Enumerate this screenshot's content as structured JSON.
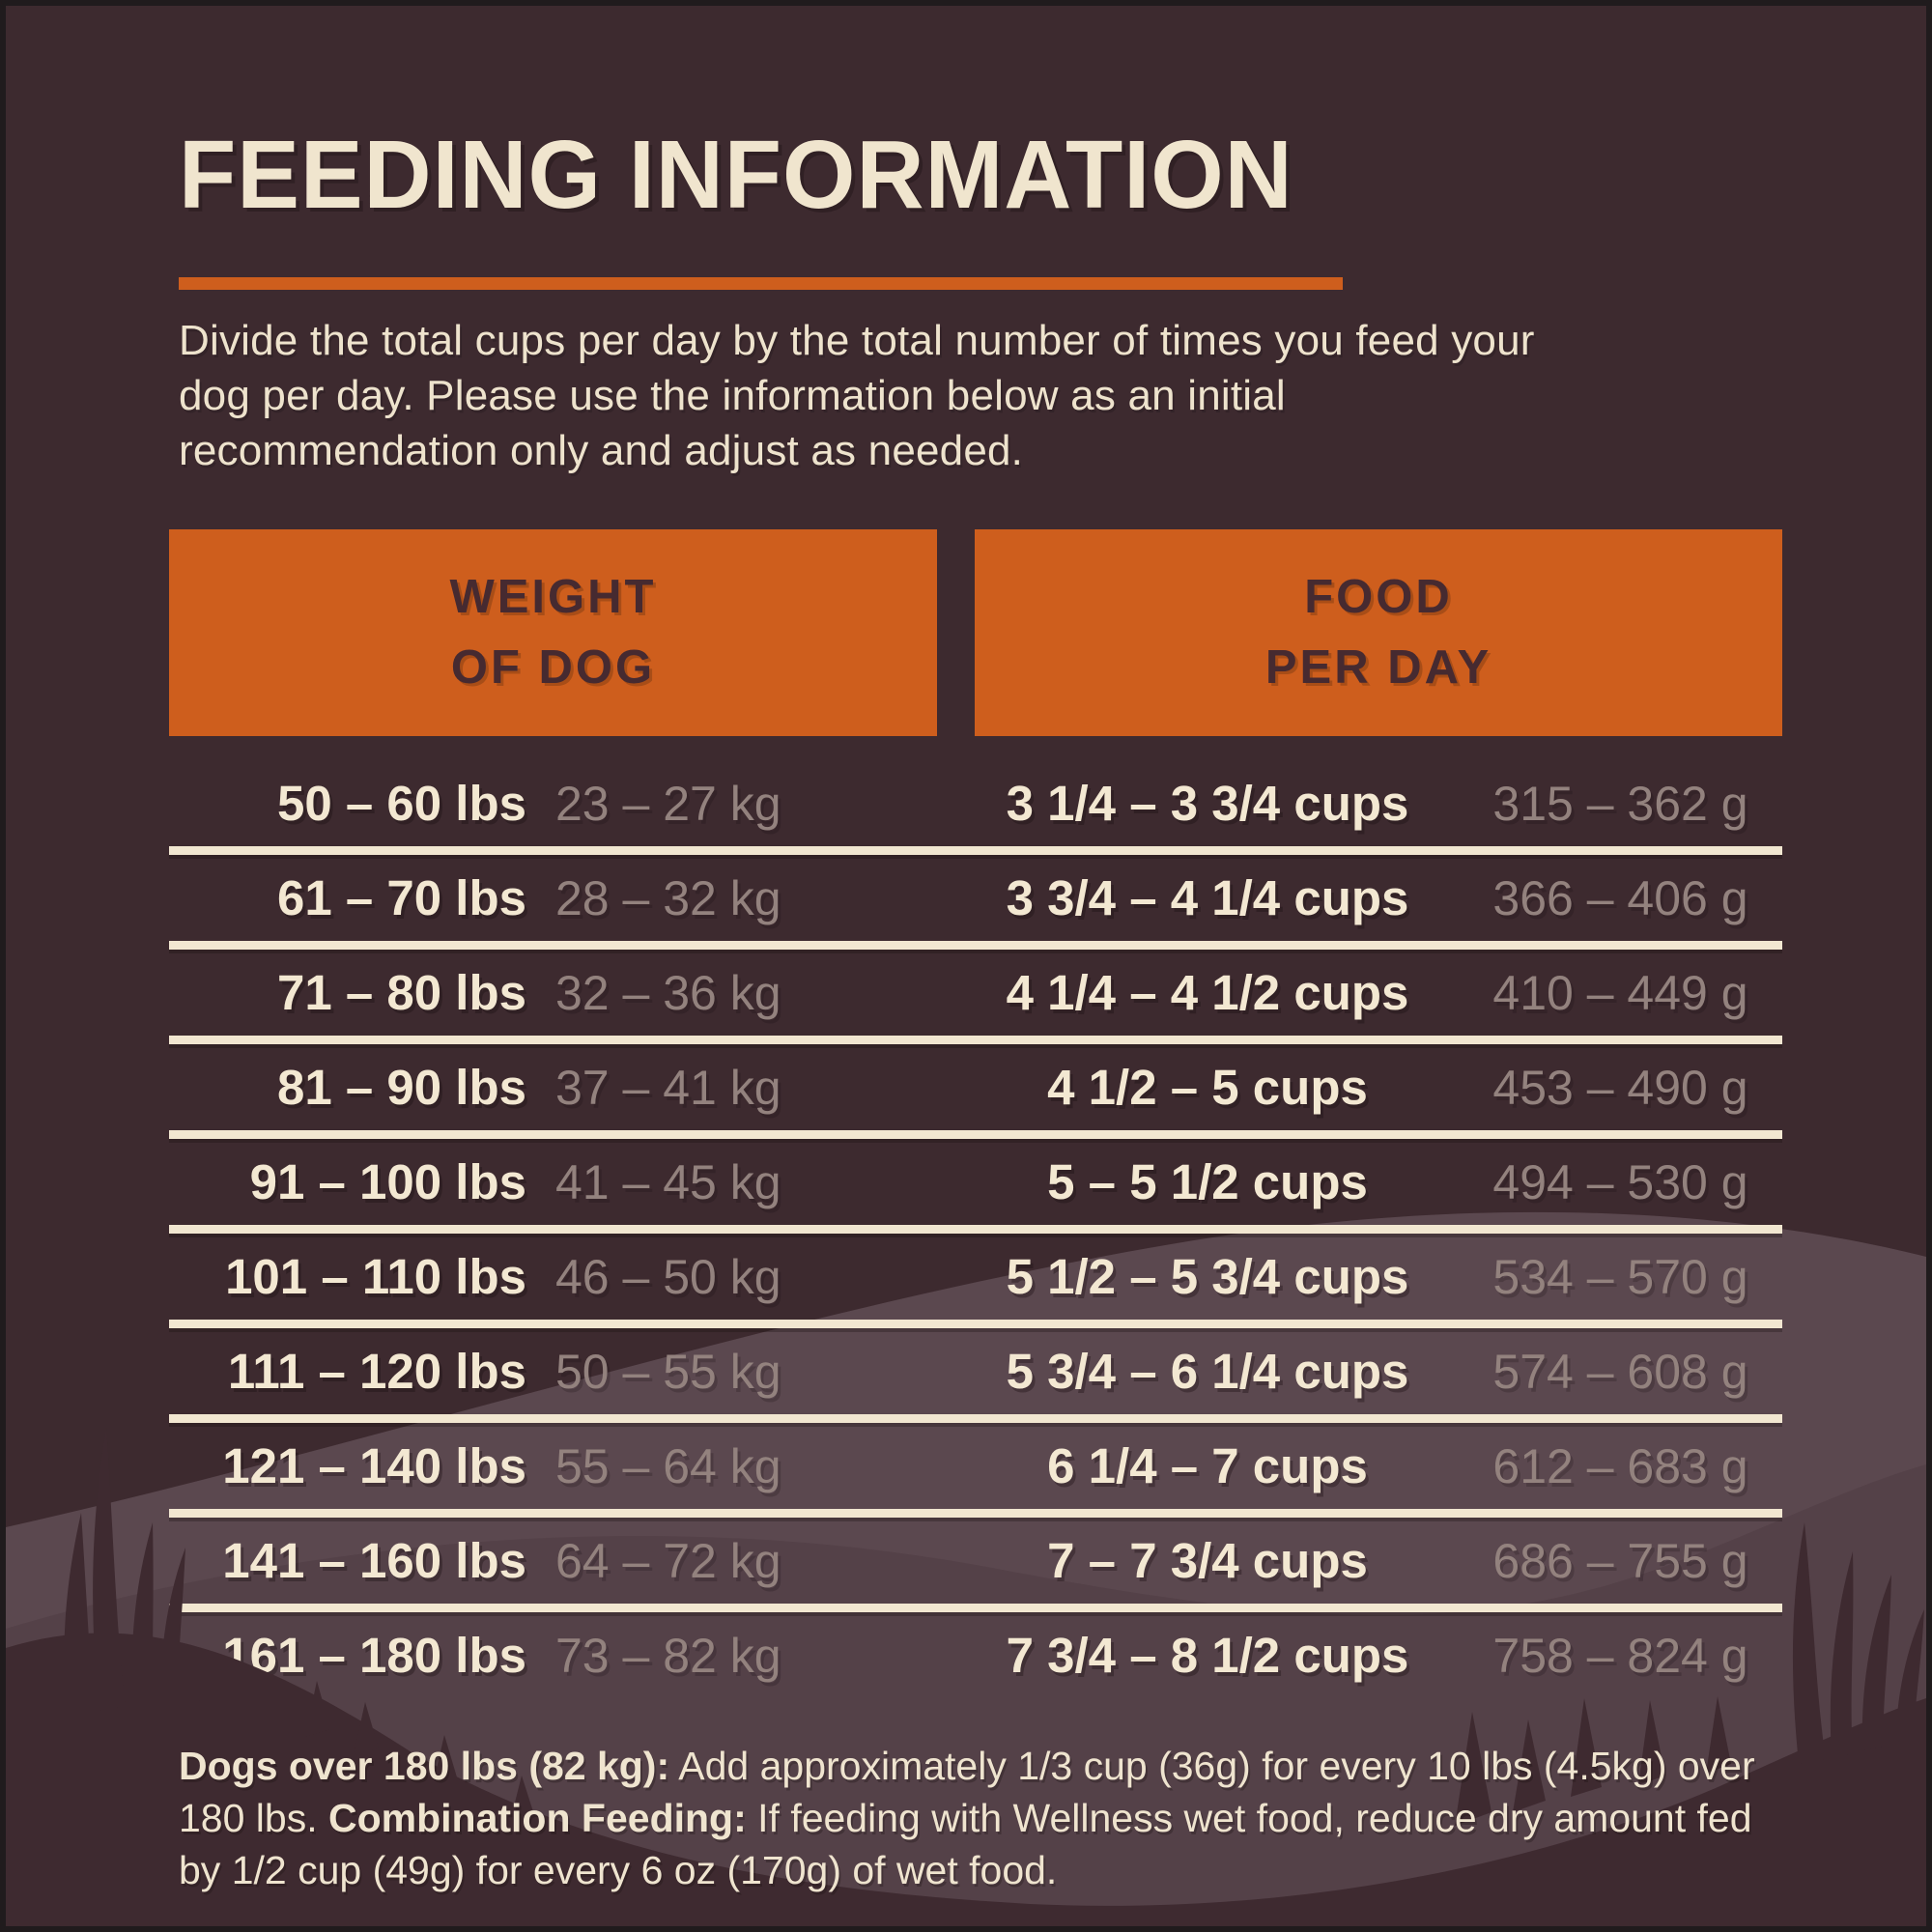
{
  "page": {
    "title": "FEEDING INFORMATION",
    "intro": "Divide the total cups per day by the total number of times you feed your dog per day. Please use the information below as an initial recommendation only and adjust as needed."
  },
  "table": {
    "headers": [
      {
        "line1": "WEIGHT",
        "line2": "OF DOG"
      },
      {
        "line1": "FOOD",
        "line2": "PER DAY"
      }
    ],
    "rows": [
      {
        "lbs": "50 – 60 lbs",
        "kg": "23 – 27 kg",
        "cups": "3 1/4 – 3 3/4 cups",
        "grams": "315 – 362 g"
      },
      {
        "lbs": "61 – 70 lbs",
        "kg": "28 – 32 kg",
        "cups": "3 3/4 – 4 1/4 cups",
        "grams": "366 – 406 g"
      },
      {
        "lbs": "71 – 80 lbs",
        "kg": "32 – 36 kg",
        "cups": "4 1/4 – 4 1/2 cups",
        "grams": "410 – 449 g"
      },
      {
        "lbs": "81 – 90 lbs",
        "kg": "37 – 41 kg",
        "cups": "4 1/2 – 5 cups",
        "grams": "453 – 490 g"
      },
      {
        "lbs": "91 – 100 lbs",
        "kg": "41 – 45 kg",
        "cups": "5 – 5 1/2 cups",
        "grams": "494 – 530 g"
      },
      {
        "lbs": "101 – 110 lbs",
        "kg": "46 – 50 kg",
        "cups": "5 1/2 – 5 3/4 cups",
        "grams": "534 – 570 g"
      },
      {
        "lbs": "111 – 120 lbs",
        "kg": "50 – 55 kg",
        "cups": "5 3/4 – 6 1/4 cups",
        "grams": "574 – 608 g"
      },
      {
        "lbs": "121 – 140 lbs",
        "kg": "55 – 64 kg",
        "cups": "6 1/4 – 7 cups",
        "grams": "612 – 683 g"
      },
      {
        "lbs": "141 – 160 lbs",
        "kg": "64 – 72 kg",
        "cups": "7 – 7 3/4 cups",
        "grams": "686 – 755 g"
      },
      {
        "lbs": "161 – 180 lbs",
        "kg": "73 – 82 kg",
        "cups": "7 3/4 – 8 1/2 cups",
        "grams": "758 – 824 g"
      }
    ]
  },
  "footnote": {
    "bold1": "Dogs over 180 lbs (82 kg):",
    "text1": " Add approximately 1/3 cup (36g) for every 10 lbs (4.5kg) over 180 lbs. ",
    "bold2": "Combination Feeding:",
    "text2": " If feeding with Wellness wet food, reduce dry amount fed by 1/2 cup (49g) for every 6 oz (170g) of wet food."
  },
  "colors": {
    "accent_orange": "#ce5e1d",
    "cream_text": "#f3e8d2",
    "muted_metric_text": "#93827e",
    "header_text_brown": "#462a30",
    "panel_background": "#3d2a2f",
    "outer_border": "#201b1d"
  }
}
